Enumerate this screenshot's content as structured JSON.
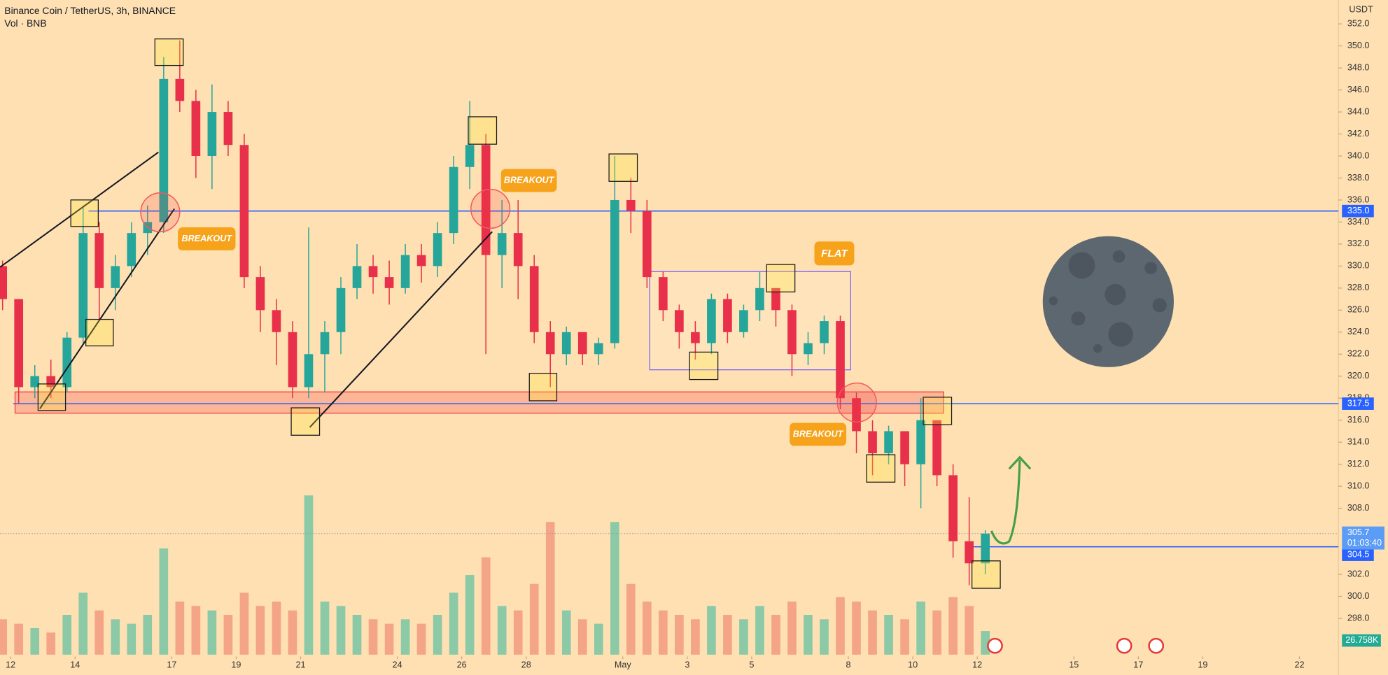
{
  "chart_data": {
    "type": "candlestick",
    "title": "Binance Coin / TetherUS, 3h, BINANCE",
    "subtitle": "Vol · BNB",
    "unit_label": "USDT",
    "x": [
      -0.25,
      0.25,
      0.75,
      1.25,
      1.75,
      2.25,
      2.75,
      3.25,
      3.75,
      4.25,
      4.75,
      5.25,
      5.75,
      6.25,
      6.75,
      7.25,
      7.75,
      8.25,
      8.75,
      9.25,
      9.75,
      10.25,
      10.75,
      11.25,
      11.75,
      12.25,
      12.75,
      13.25,
      13.75,
      14.25,
      14.75,
      15.25,
      15.75,
      16.25,
      16.75,
      17.25,
      17.75,
      18.25,
      18.75,
      19.25,
      19.75,
      20.25,
      20.75,
      21.25,
      21.75,
      22.25,
      22.75,
      23.25,
      23.75,
      24.25,
      24.75,
      25.25,
      25.75,
      26.25,
      26.75,
      27.25,
      27.75,
      28.25,
      28.75,
      29.25,
      29.75,
      30.25
    ],
    "open": [
      330,
      327,
      319,
      320,
      319,
      323.5,
      333,
      328,
      330,
      333,
      334,
      347,
      345,
      340,
      344,
      341,
      329,
      326,
      324,
      319,
      322,
      324,
      328,
      330,
      329,
      328,
      331,
      330,
      333,
      339,
      341,
      331,
      333,
      330,
      324,
      322,
      324,
      322,
      323,
      336,
      335,
      329,
      326,
      324,
      323,
      327,
      324,
      326,
      328,
      326,
      322,
      323,
      325,
      318,
      315,
      313,
      315,
      312,
      316,
      311,
      305,
      303
    ],
    "high": [
      330.5,
      327,
      321,
      321.5,
      324,
      335.5,
      334,
      331,
      334,
      335.5,
      349,
      350.5,
      346,
      346.5,
      345,
      342,
      330,
      327,
      325,
      333.5,
      325,
      329,
      332,
      331,
      330.5,
      332,
      332,
      334,
      340,
      345,
      342,
      336,
      336,
      331,
      325,
      324.5,
      324,
      323.5,
      340,
      338,
      336,
      329.5,
      326.5,
      325,
      327.5,
      327.5,
      326.5,
      329.5,
      328,
      326.5,
      324,
      325.5,
      325.5,
      318.5,
      316,
      315.5,
      315,
      318,
      316,
      312,
      309,
      306
    ],
    "low": [
      326,
      317.5,
      318,
      318,
      318.5,
      323,
      325,
      326,
      329,
      331,
      333,
      344,
      338,
      337,
      340,
      328,
      324,
      321,
      318,
      318,
      318.5,
      322,
      327,
      327.5,
      326.5,
      327.5,
      328.5,
      329,
      332,
      337,
      322,
      328,
      327,
      323,
      319,
      321,
      321,
      321,
      322.5,
      333,
      328,
      325,
      322.5,
      321.5,
      322,
      323,
      323.5,
      325,
      324.5,
      320,
      321,
      322,
      317,
      313,
      311,
      312,
      310,
      308,
      310,
      303.5,
      301,
      302
    ],
    "close": [
      327,
      319,
      320,
      319,
      323.5,
      333,
      328,
      330,
      333,
      334,
      347,
      345,
      340,
      344,
      341,
      329,
      326,
      324,
      319,
      322,
      324,
      328,
      330,
      329,
      328,
      331,
      330,
      333,
      339,
      341,
      331,
      333,
      330,
      324,
      322,
      324,
      322,
      323,
      336,
      335,
      329,
      326,
      324,
      323,
      327,
      324,
      326,
      328,
      326,
      322,
      323,
      325,
      318,
      315,
      313,
      315,
      312,
      316,
      311,
      305,
      303,
      305.7
    ],
    "volume": [
      40,
      35,
      30,
      25,
      45,
      70,
      50,
      40,
      35,
      45,
      120,
      60,
      55,
      50,
      45,
      70,
      55,
      60,
      50,
      180,
      60,
      55,
      45,
      40,
      35,
      40,
      35,
      45,
      70,
      90,
      110,
      55,
      50,
      80,
      150,
      50,
      40,
      35,
      150,
      80,
      60,
      50,
      45,
      40,
      55,
      45,
      40,
      55,
      45,
      60,
      45,
      40,
      65,
      60,
      50,
      45,
      40,
      60,
      50,
      65,
      55,
      26.758
    ],
    "last_volume_label": "26.758K",
    "countdown": "01:03:40",
    "volume_lim": [
      0,
      220
    ],
    "up_color": "#26a69a",
    "down_color": "#e8304a",
    "volume_up_color": "#8cc9a6",
    "volume_down_color": "#f4a487",
    "level_color": "#2962ff",
    "xlim": [
      -0.33,
      41.21
    ],
    "ylim": [
      294.7,
      354.17
    ],
    "xticks": [
      {
        "value": 0,
        "label": "12"
      },
      {
        "value": 2,
        "label": "14"
      },
      {
        "value": 5,
        "label": "17"
      },
      {
        "value": 7,
        "label": "19"
      },
      {
        "value": 9,
        "label": "21"
      },
      {
        "value": 12,
        "label": "24"
      },
      {
        "value": 14,
        "label": "26"
      },
      {
        "value": 16,
        "label": "28"
      },
      {
        "value": 19,
        "label": "May"
      },
      {
        "value": 21,
        "label": "3"
      },
      {
        "value": 23,
        "label": "5"
      },
      {
        "value": 26,
        "label": "8"
      },
      {
        "value": 28,
        "label": "10"
      },
      {
        "value": 30,
        "label": "12"
      },
      {
        "value": 33,
        "label": "15"
      },
      {
        "value": 35,
        "label": "17"
      },
      {
        "value": 37,
        "label": "19"
      },
      {
        "value": 40,
        "label": "22"
      }
    ],
    "yticks": [
      {
        "value": 298,
        "label": "298.0"
      },
      {
        "value": 300,
        "label": "300.0"
      },
      {
        "value": 302,
        "label": "302.0"
      },
      {
        "value": 308,
        "label": "308.0"
      },
      {
        "value": 310,
        "label": "310.0"
      },
      {
        "value": 312,
        "label": "312.0"
      },
      {
        "value": 314,
        "label": "314.0"
      },
      {
        "value": 316,
        "label": "316.0"
      },
      {
        "value": 318,
        "label": "318.0"
      },
      {
        "value": 320,
        "label": "320.0"
      },
      {
        "value": 322,
        "label": "322.0"
      },
      {
        "value": 324,
        "label": "324.0"
      },
      {
        "value": 326,
        "label": "326.0"
      },
      {
        "value": 328,
        "label": "328.0"
      },
      {
        "value": 330,
        "label": "330.0"
      },
      {
        "value": 332,
        "label": "332.0"
      },
      {
        "value": 334,
        "label": "334.0"
      },
      {
        "value": 336,
        "label": "336.0"
      },
      {
        "value": 338,
        "label": "338.0"
      },
      {
        "value": 340,
        "label": "340.0"
      },
      {
        "value": 342,
        "label": "342.0"
      },
      {
        "value": 344,
        "label": "344.0"
      },
      {
        "value": 346,
        "label": "346.0"
      },
      {
        "value": 348,
        "label": "348.0"
      },
      {
        "value": 350,
        "label": "350.0"
      },
      {
        "value": 352,
        "label": "352.0"
      }
    ],
    "levels": [
      {
        "value": 335,
        "label": "335.0"
      },
      317.5,
      304.5
    ],
    "annotations": [
      "BREAKOUT",
      "BREAKOUT",
      "BREAKOUT",
      "FLAT"
    ]
  }
}
